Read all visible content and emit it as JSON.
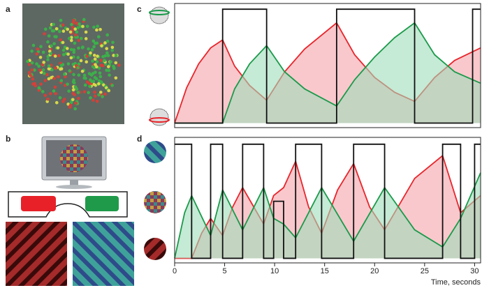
{
  "panel_labels": [
    "a",
    "b",
    "c",
    "d"
  ],
  "chart_data": [
    {
      "type": "line",
      "xlim": [
        0,
        30.6
      ],
      "ylim": [
        -0.04,
        1.05
      ],
      "series": [
        {
          "color": "#e8252b",
          "fill": "#f5a3aa",
          "x": [
            0,
            1.2,
            2.4,
            3.6,
            4.8,
            6.0,
            7.5,
            9.2,
            11,
            13,
            16.2,
            18,
            20,
            22,
            24,
            26,
            28,
            30.6
          ],
          "values": [
            0,
            0.31,
            0.52,
            0.66,
            0.73,
            0.5,
            0.33,
            0.2,
            0.45,
            0.65,
            0.88,
            0.6,
            0.4,
            0.27,
            0.19,
            0.4,
            0.55,
            0.66
          ]
        },
        {
          "color": "#1a9a4a",
          "fill": "#9fdcb9",
          "x": [
            0,
            4.8,
            6.0,
            7.5,
            9.2,
            11,
            13,
            16.2,
            18,
            20,
            22,
            24,
            26,
            28,
            30.6
          ],
          "values": [
            0,
            0,
            0.3,
            0.52,
            0.68,
            0.45,
            0.3,
            0.15,
            0.38,
            0.58,
            0.75,
            0.88,
            0.6,
            0.45,
            0.35
          ]
        },
        {
          "color": "#111111",
          "x": [
            0,
            4.8,
            4.8,
            9.2,
            9.2,
            16.2,
            16.2,
            24,
            24,
            29.8,
            29.8,
            30.6
          ],
          "values": [
            0,
            0,
            1,
            1,
            0,
            0,
            1,
            1,
            0,
            0,
            1,
            1
          ]
        }
      ]
    },
    {
      "type": "line",
      "xlim": [
        0,
        30.6
      ],
      "ylim": [
        -0.04,
        1.06
      ],
      "xticks": [
        0,
        5,
        10,
        15,
        20,
        25,
        30
      ],
      "xlabel": "Time, seconds",
      "series": [
        {
          "color": "#e8252b",
          "fill": "#f5a3aa",
          "x": [
            0,
            1.7,
            2.7,
            3.6,
            4.8,
            5.8,
            6.8,
            8.9,
            9.9,
            10.9,
            12.1,
            13.4,
            14.7,
            16.3,
            17.9,
            19.5,
            21,
            24,
            26.8,
            28.6,
            30.6
          ],
          "values": [
            0,
            0,
            0.22,
            0.35,
            0.2,
            0.45,
            0.62,
            0.3,
            0.55,
            0.62,
            0.85,
            0.45,
            0.22,
            0.6,
            0.83,
            0.45,
            0.25,
            0.7,
            0.9,
            0.4,
            0.55
          ]
        },
        {
          "color": "#1a9a4a",
          "fill": "#9fdcb9",
          "x": [
            0,
            1.0,
            1.7,
            3.6,
            4.8,
            6.8,
            8.9,
            9.9,
            10.9,
            12.1,
            14.7,
            17.9,
            21,
            24,
            26.8,
            28.6,
            30.6
          ],
          "values": [
            0,
            0.4,
            0.55,
            0.2,
            0.6,
            0.25,
            0.62,
            0.35,
            0.3,
            0.18,
            0.62,
            0.15,
            0.62,
            0.25,
            0.1,
            0.35,
            0.75
          ]
        },
        {
          "color": "#111111",
          "x": [
            0,
            1.7,
            1.7,
            3.6,
            3.6,
            4.8,
            4.8,
            6.8,
            6.8,
            8.9,
            8.9,
            9.9,
            9.9,
            10.9,
            10.9,
            12.1,
            12.1,
            14.7,
            14.7,
            17.9,
            17.9,
            21,
            21,
            26.8,
            26.8,
            28.6,
            28.6,
            30,
            30,
            30.6
          ],
          "values": [
            1,
            1,
            0,
            0,
            1,
            1,
            0,
            0,
            1,
            1,
            0,
            0,
            0.5,
            0.5,
            0,
            0,
            1,
            1,
            0,
            0,
            1,
            1,
            0,
            0,
            1,
            1,
            0,
            0,
            1,
            1
          ]
        }
      ]
    }
  ]
}
